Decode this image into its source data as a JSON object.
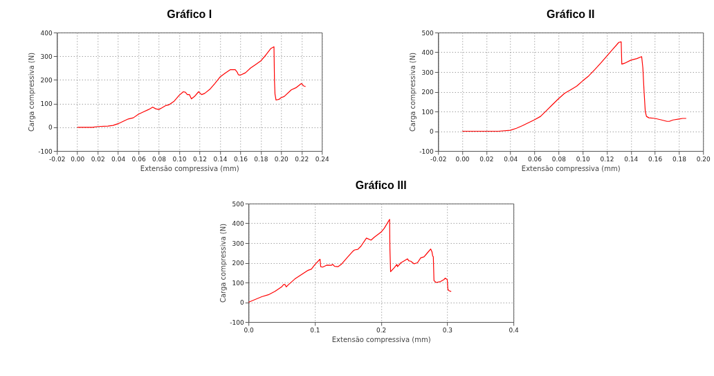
{
  "chart_data": [
    {
      "type": "line",
      "title": "Gráfico I",
      "xlabel": "Extensão compressiva (mm)",
      "ylabel": "Carga compressiva (N)",
      "grid": true,
      "xlim": [
        -0.02,
        0.24
      ],
      "ylim": [
        -100,
        400
      ],
      "xticks": [
        {
          "value": -0.02,
          "label": "-0.02"
        },
        {
          "value": 0,
          "label": "0.00"
        },
        {
          "value": 0.02,
          "label": "0.02"
        },
        {
          "value": 0.04,
          "label": "0.04"
        },
        {
          "value": 0.06,
          "label": "0.06"
        },
        {
          "value": 0.08,
          "label": "0.08"
        },
        {
          "value": 0.1,
          "label": "0.10"
        },
        {
          "value": 0.12,
          "label": "0.12"
        },
        {
          "value": 0.14,
          "label": "0.14"
        },
        {
          "value": 0.16,
          "label": "0.16"
        },
        {
          "value": 0.18,
          "label": "0.18"
        },
        {
          "value": 0.2,
          "label": "0.20"
        },
        {
          "value": 0.22,
          "label": "0.22"
        },
        {
          "value": 0.24,
          "label": "0.24"
        }
      ],
      "yticks": [
        -100,
        0,
        100,
        200,
        300,
        400
      ],
      "x": [
        0,
        0.015,
        0.02,
        0.03,
        0.035,
        0.04,
        0.045,
        0.05,
        0.055,
        0.06,
        0.065,
        0.07,
        0.074,
        0.077,
        0.08,
        0.083,
        0.087,
        0.09,
        0.095,
        0.1,
        0.104,
        0.106,
        0.108,
        0.11,
        0.112,
        0.115,
        0.119,
        0.122,
        0.125,
        0.13,
        0.135,
        0.14,
        0.145,
        0.15,
        0.155,
        0.157,
        0.158,
        0.16,
        0.165,
        0.17,
        0.175,
        0.18,
        0.185,
        0.19,
        0.193,
        0.1935,
        0.194,
        0.195,
        0.198,
        0.2,
        0.203,
        0.21,
        0.215,
        0.22,
        0.222,
        0.224
      ],
      "series": [
        {
          "color": "#ff0000",
          "values": [
            0,
            0,
            3,
            5,
            8,
            15,
            25,
            35,
            40,
            55,
            65,
            75,
            85,
            78,
            75,
            82,
            92,
            95,
            110,
            135,
            150,
            148,
            138,
            138,
            120,
            130,
            150,
            138,
            143,
            160,
            185,
            212,
            228,
            243,
            243,
            232,
            222,
            220,
            230,
            250,
            265,
            280,
            305,
            333,
            340,
            195,
            140,
            115,
            118,
            125,
            130,
            158,
            168,
            185,
            175,
            172
          ]
        }
      ]
    },
    {
      "type": "line",
      "title": "Gráfico II",
      "xlabel": "Extensão compressiva (mm)",
      "ylabel": "Carga compressiva (N)",
      "grid": true,
      "xlim": [
        -0.02,
        0.2
      ],
      "ylim": [
        -100,
        500
      ],
      "xticks": [
        {
          "value": -0.02,
          "label": "-0.02"
        },
        {
          "value": 0,
          "label": "0.00"
        },
        {
          "value": 0.02,
          "label": "0.02"
        },
        {
          "value": 0.04,
          "label": "0.04"
        },
        {
          "value": 0.06,
          "label": "0.06"
        },
        {
          "value": 0.08,
          "label": "0.08"
        },
        {
          "value": 0.1,
          "label": "0.10"
        },
        {
          "value": 0.12,
          "label": "0.12"
        },
        {
          "value": 0.14,
          "label": "0.14"
        },
        {
          "value": 0.16,
          "label": "0.16"
        },
        {
          "value": 0.18,
          "label": "0.18"
        },
        {
          "value": 0.2,
          "label": "0.20"
        }
      ],
      "yticks": [
        -100,
        0,
        100,
        200,
        300,
        400,
        500
      ],
      "x": [
        0,
        0.03,
        0.04,
        0.045,
        0.05,
        0.06,
        0.065,
        0.07,
        0.075,
        0.08,
        0.085,
        0.09,
        0.095,
        0.1,
        0.105,
        0.11,
        0.115,
        0.12,
        0.125,
        0.13,
        0.132,
        0.1325,
        0.135,
        0.14,
        0.145,
        0.149,
        0.15,
        0.151,
        0.152,
        0.153,
        0.155,
        0.16,
        0.165,
        0.17,
        0.172,
        0.175,
        0.18,
        0.183,
        0.186
      ],
      "series": [
        {
          "color": "#ff0000",
          "values": [
            0,
            0,
            5,
            15,
            28,
            58,
            75,
            105,
            135,
            165,
            192,
            210,
            228,
            255,
            280,
            312,
            345,
            380,
            415,
            450,
            453,
            340,
            345,
            360,
            368,
            378,
            320,
            200,
            100,
            75,
            68,
            65,
            58,
            50,
            50,
            57,
            62,
            65,
            65
          ]
        }
      ]
    },
    {
      "type": "line",
      "title": "Gráfico III",
      "xlabel": "Extensão compressiva (mm)",
      "ylabel": "Carga compressiva (N)",
      "grid": true,
      "xlim": [
        0,
        0.4
      ],
      "ylim": [
        -100,
        500
      ],
      "xticks": [
        {
          "value": 0,
          "label": "0.0"
        },
        {
          "value": 0.1,
          "label": "0.1"
        },
        {
          "value": 0.2,
          "label": "0.2"
        },
        {
          "value": 0.3,
          "label": "0.3"
        },
        {
          "value": 0.4,
          "label": "0.4"
        }
      ],
      "yticks": [
        -100,
        0,
        100,
        200,
        300,
        400,
        500
      ],
      "x": [
        0,
        0.02,
        0.03,
        0.04,
        0.05,
        0.053,
        0.055,
        0.057,
        0.06,
        0.07,
        0.08,
        0.09,
        0.095,
        0.1,
        0.107,
        0.108,
        0.109,
        0.112,
        0.118,
        0.125,
        0.127,
        0.13,
        0.135,
        0.14,
        0.15,
        0.158,
        0.16,
        0.165,
        0.17,
        0.178,
        0.185,
        0.19,
        0.2,
        0.205,
        0.213,
        0.2135,
        0.2145,
        0.22,
        0.224,
        0.225,
        0.23,
        0.235,
        0.24,
        0.242,
        0.245,
        0.25,
        0.255,
        0.26,
        0.265,
        0.27,
        0.275,
        0.277,
        0.278,
        0.279,
        0.28,
        0.283,
        0.29,
        0.295,
        0.297,
        0.3,
        0.301,
        0.303,
        0.306
      ],
      "series": [
        {
          "color": "#ff0000",
          "values": [
            0,
            28,
            38,
            55,
            78,
            90,
            90,
            78,
            88,
            118,
            140,
            162,
            168,
            190,
            215,
            218,
            180,
            178,
            188,
            187,
            192,
            182,
            180,
            192,
            230,
            260,
            265,
            268,
            285,
            325,
            315,
            330,
            355,
            375,
            420,
            270,
            155,
            175,
            192,
            180,
            200,
            210,
            220,
            210,
            208,
            195,
            200,
            225,
            230,
            250,
            270,
            255,
            235,
            230,
            110,
            100,
            105,
            115,
            122,
            115,
            65,
            58,
            55
          ]
        }
      ]
    }
  ]
}
